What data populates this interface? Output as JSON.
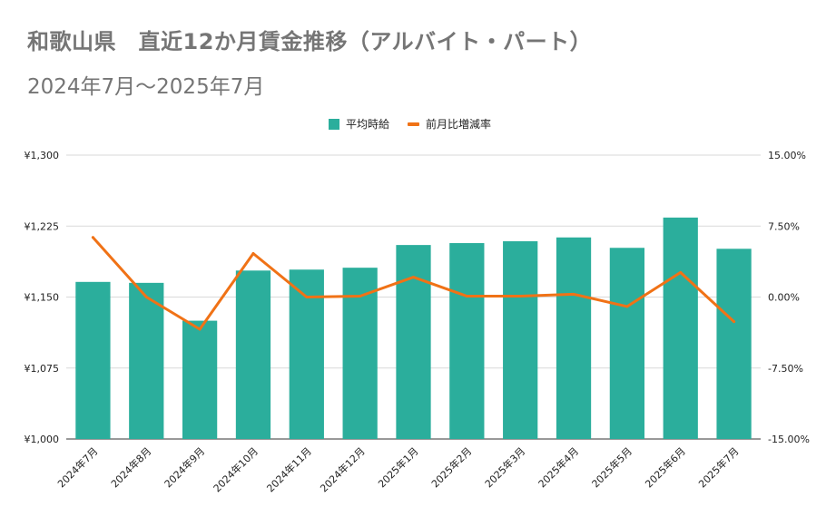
{
  "title": "和歌山県　直近12か月賃金推移（アルバイト・パート）",
  "subtitle": "2024年7月～2025年7月",
  "legend": {
    "bar_label": "平均時給",
    "line_label": "前月比増減率",
    "placement": "top-center"
  },
  "colors": {
    "bar": "#2bae9c",
    "line": "#f07216",
    "grid": "#d9d9d9",
    "text": "#222222",
    "title": "#757575"
  },
  "chart_data": {
    "type": "bar",
    "combo_line": true,
    "categories": [
      "2024年7月",
      "2024年8月",
      "2024年9月",
      "2024年10月",
      "2024年11月",
      "2024年12月",
      "2025年1月",
      "2025年2月",
      "2025年3月",
      "2025年4月",
      "2025年5月",
      "2025年6月",
      "2025年7月"
    ],
    "series": [
      {
        "name": "平均時給",
        "type": "bar",
        "axis": "left",
        "values": [
          1166,
          1165,
          1125,
          1178,
          1179,
          1181,
          1205,
          1207,
          1209,
          1213,
          1202,
          1234,
          1201
        ]
      },
      {
        "name": "前月比増減率",
        "type": "line",
        "axis": "right",
        "values": [
          6.3,
          0.0,
          -3.4,
          4.6,
          0.0,
          0.1,
          2.1,
          0.1,
          0.1,
          0.3,
          -1.0,
          2.6,
          -2.6
        ]
      }
    ],
    "y_left": {
      "min": 1000,
      "max": 1300,
      "ticks": [
        "¥1,000",
        "¥1,075",
        "¥1,150",
        "¥1,225",
        "¥1,300"
      ]
    },
    "y_right": {
      "min": -15,
      "max": 15,
      "ticks": [
        "-15.00%",
        "-7.50%",
        "0.00%",
        "7.50%",
        "15.00%"
      ]
    },
    "grid": true
  }
}
